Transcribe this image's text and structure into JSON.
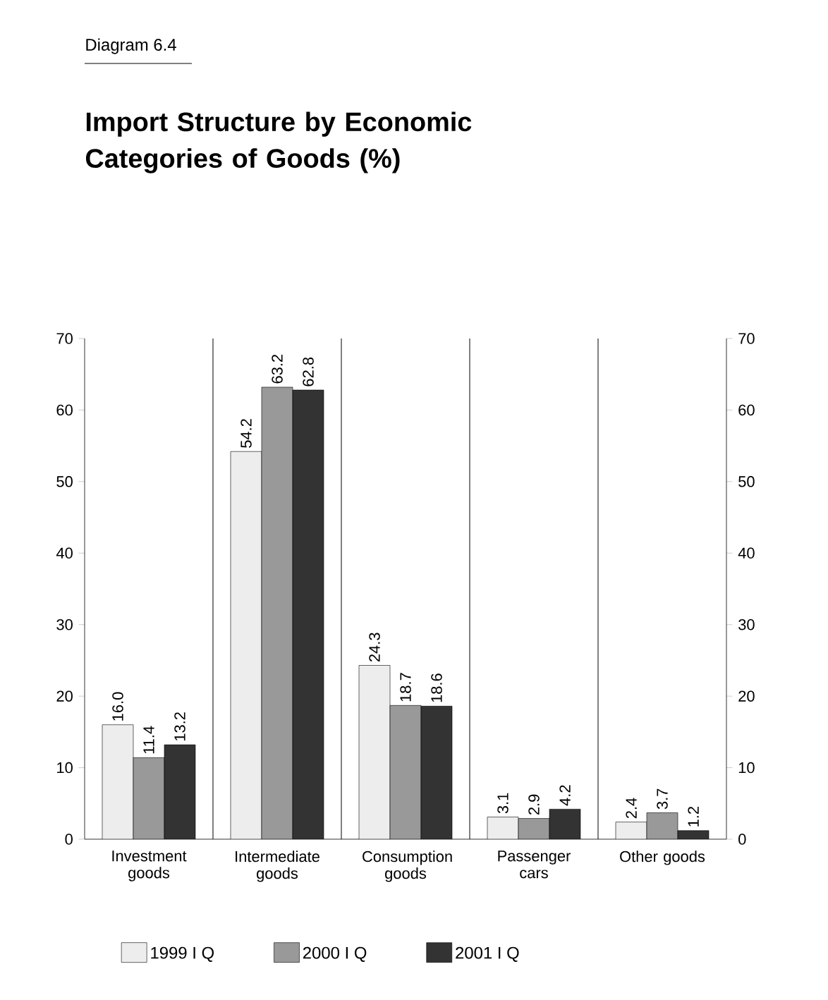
{
  "chart_data": {
    "type": "bar",
    "title": "Import Structure by Economic Categories of Goods (%)",
    "annotations": [
      "Diagram 6.4"
    ],
    "categories": [
      "Investment goods",
      "Intermediate goods",
      "Consumption goods",
      "Passenger cars",
      "Other goods"
    ],
    "series": [
      {
        "name": "1999 I Q",
        "color": "#ededed",
        "values": [
          16.0,
          54.2,
          24.3,
          3.1,
          2.4
        ],
        "value_labels": [
          "16.0",
          "54.2",
          "24.3",
          "3.1",
          "2.4"
        ]
      },
      {
        "name": "2000 I Q",
        "color": "#999999",
        "values": [
          11.4,
          63.2,
          18.7,
          2.9,
          3.7
        ],
        "value_labels": [
          "11.4",
          "63.2",
          "18.7",
          "2.9",
          "3.7"
        ]
      },
      {
        "name": "2001 I Q",
        "color": "#333333",
        "values": [
          13.2,
          62.8,
          18.6,
          4.2,
          1.2
        ],
        "value_labels": [
          "13.2",
          "62.8",
          "18.6",
          "4.2",
          "1.2"
        ]
      }
    ],
    "ylim": [
      0,
      70
    ],
    "yticks": [
      0,
      10,
      20,
      30,
      40,
      50,
      60,
      70
    ],
    "y2lim": [
      0,
      70
    ],
    "y2ticks": [
      0,
      10,
      20,
      30,
      40,
      50,
      60,
      70
    ],
    "legend": "bottom",
    "grid": false
  }
}
